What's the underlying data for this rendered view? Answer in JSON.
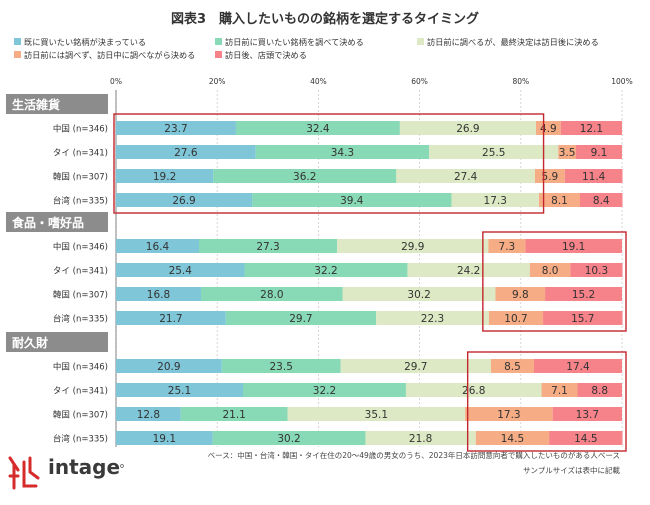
{
  "title": "図表3　購入したいものの銘柄を選定するタイミング",
  "colors": {
    "s1": "#7fc6d8",
    "s2": "#88d9b5",
    "s3": "#dde9c4",
    "s4": "#f6ac84",
    "s5": "#f6828a",
    "group_bg": "#8c8c8c",
    "highlight": "#c1272d",
    "grid": "#cccccc",
    "logo_red": "#d62b2b"
  },
  "chart_data": {
    "type": "bar",
    "stacked": true,
    "orientation": "horizontal",
    "title": "図表3　購入したいものの銘柄を選定するタイミング",
    "x_ticks": [
      "0%",
      "20%",
      "40%",
      "60%",
      "80%",
      "100%"
    ],
    "xlim": [
      0,
      100
    ],
    "series": [
      {
        "name": "既に買いたい銘柄が決まっている",
        "color": "#7fc6d8"
      },
      {
        "name": "訪日前に買いたい銘柄を調べて決める",
        "color": "#88d9b5"
      },
      {
        "name": "訪日前に調べるが、最終決定は訪日後に決める",
        "color": "#dde9c4"
      },
      {
        "name": "訪日前には調べず、訪日中に調べながら決める",
        "color": "#f6ac84"
      },
      {
        "name": "訪日後、店頭で決める",
        "color": "#f6828a"
      }
    ],
    "groups": [
      {
        "label": "生活雑貨",
        "rows": [
          {
            "label": "中国 (n=346)",
            "values": [
              23.7,
              32.4,
              26.9,
              4.9,
              12.1
            ]
          },
          {
            "label": "タイ (n=341)",
            "values": [
              27.6,
              34.3,
              25.5,
              3.5,
              9.1
            ]
          },
          {
            "label": "韓国 (n=307)",
            "values": [
              19.2,
              36.2,
              27.4,
              5.9,
              11.4
            ]
          },
          {
            "label": "台湾 (n=335)",
            "values": [
              26.9,
              39.4,
              17.3,
              8.1,
              8.4
            ]
          }
        ]
      },
      {
        "label": "食品・嗜好品",
        "rows": [
          {
            "label": "中国 (n=346)",
            "values": [
              16.4,
              27.3,
              29.9,
              7.3,
              19.1
            ]
          },
          {
            "label": "タイ (n=341)",
            "values": [
              25.4,
              32.2,
              24.2,
              8.0,
              10.3
            ]
          },
          {
            "label": "韓国 (n=307)",
            "values": [
              16.8,
              28.0,
              30.2,
              9.8,
              15.2
            ]
          },
          {
            "label": "台湾 (n=335)",
            "values": [
              21.7,
              29.7,
              22.3,
              10.7,
              15.7
            ]
          }
        ]
      },
      {
        "label": "耐久財",
        "rows": [
          {
            "label": "中国 (n=346)",
            "values": [
              20.9,
              23.5,
              29.7,
              8.5,
              17.4
            ]
          },
          {
            "label": "タイ (n=341)",
            "values": [
              25.1,
              32.2,
              26.8,
              7.1,
              8.8
            ]
          },
          {
            "label": "韓国 (n=307)",
            "values": [
              12.8,
              21.1,
              35.1,
              17.3,
              13.7
            ]
          },
          {
            "label": "台湾 (n=335)",
            "values": [
              19.1,
              30.2,
              21.8,
              14.5,
              14.5
            ]
          }
        ]
      }
    ]
  },
  "footnote1": "ベース：中国・台湾・韓国・タイ在住の20～49歳の男女のうち、2023年日本訪問意向者で購入したいものがある人ベース",
  "footnote2": "サンプルサイズは表中に記載",
  "logo": {
    "text": "intage",
    "mark": "trademark"
  }
}
